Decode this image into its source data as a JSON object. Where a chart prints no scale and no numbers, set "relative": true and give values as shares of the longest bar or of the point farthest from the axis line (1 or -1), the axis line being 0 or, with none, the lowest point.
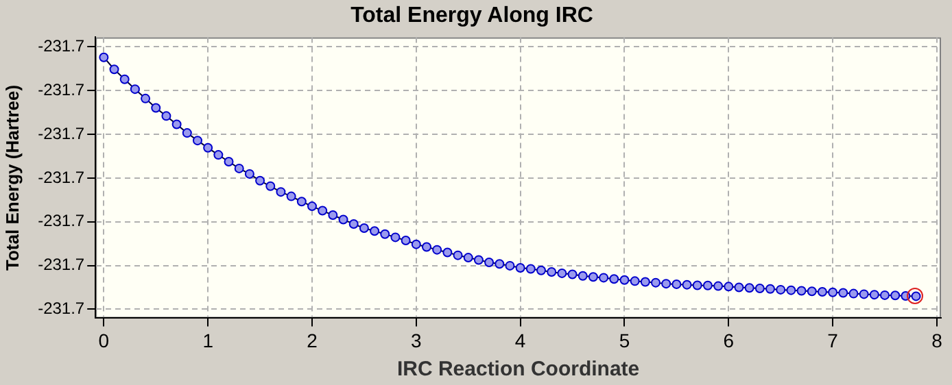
{
  "chart_data": {
    "type": "line",
    "title": "Total Energy Along IRC",
    "xlabel": "IRC Reaction Coordinate",
    "ylabel": "Total Energy (Hartree)",
    "relative": true,
    "x": [
      0,
      0.1,
      0.2,
      0.3,
      0.4,
      0.5,
      0.6,
      0.7,
      0.8,
      0.9,
      1.0,
      1.1,
      1.2,
      1.3,
      1.4,
      1.5,
      1.6,
      1.7,
      1.8,
      1.9,
      2.0,
      2.1,
      2.2,
      2.3,
      2.4,
      2.5,
      2.6,
      2.7,
      2.8,
      2.9,
      3.0,
      3.1,
      3.2,
      3.3,
      3.4,
      3.5,
      3.6,
      3.7,
      3.8,
      3.9,
      4.0,
      4.1,
      4.2,
      4.3,
      4.4,
      4.5,
      4.6,
      4.7,
      4.8,
      4.9,
      5.0,
      5.1,
      5.2,
      5.3,
      5.4,
      5.5,
      5.6,
      5.7,
      5.8,
      5.9,
      6.0,
      6.1,
      6.2,
      6.3,
      6.4,
      6.5,
      6.6,
      6.7,
      6.8,
      6.9,
      7.0,
      7.1,
      7.2,
      7.3,
      7.4,
      7.5,
      7.6,
      7.7,
      7.8
    ],
    "series": [
      {
        "color": "#0000cc",
        "values": [
          1,
          0.954,
          0.916,
          0.878,
          0.842,
          0.806,
          0.775,
          0.743,
          0.71,
          0.681,
          0.653,
          0.626,
          0.6,
          0.574,
          0.553,
          0.527,
          0.506,
          0.484,
          0.467,
          0.447,
          0.429,
          0.412,
          0.395,
          0.378,
          0.361,
          0.345,
          0.334,
          0.322,
          0.31,
          0.298,
          0.283,
          0.273,
          0.262,
          0.252,
          0.241,
          0.232,
          0.223,
          0.214,
          0.208,
          0.201,
          0.193,
          0.189,
          0.183,
          0.177,
          0.172,
          0.168,
          0.162,
          0.158,
          0.155,
          0.15,
          0.146,
          0.142,
          0.139,
          0.136,
          0.132,
          0.13,
          0.128,
          0.126,
          0.125,
          0.123,
          0.121,
          0.118,
          0.116,
          0.114,
          0.112,
          0.109,
          0.107,
          0.105,
          0.103,
          0.101,
          0.099,
          0.097,
          0.094,
          0.092,
          0.09,
          0.088,
          0.087,
          0.085,
          0.084
        ]
      }
    ],
    "xlim": [
      -0.08,
      8.04
    ],
    "xticks": [
      0,
      1,
      2,
      3,
      4,
      5,
      6,
      7,
      8
    ],
    "annotations": [
      "-231.7",
      "-231.7",
      "-231.7",
      "-231.7",
      "-231.7",
      "-231.7",
      "-231.7"
    ],
    "grid": true,
    "legend": false,
    "marker": "circle",
    "line_style": "solid"
  }
}
